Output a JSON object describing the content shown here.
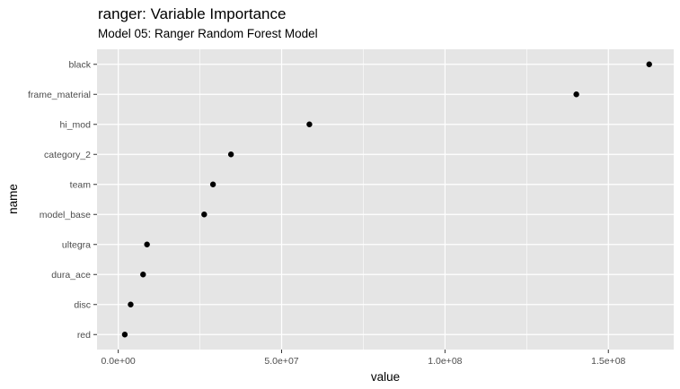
{
  "chart_data": {
    "type": "scatter",
    "title": "ranger: Variable Importance",
    "subtitle": "Model 05: Ranger Random Forest Model",
    "xlabel": "value",
    "ylabel": "name",
    "xlim": [
      -6500000,
      170000000
    ],
    "x_ticks": [
      0,
      50000000,
      100000000,
      150000000
    ],
    "x_tick_labels": [
      "0.0e+00",
      "5.0e+07",
      "1.0e+08",
      "1.5e+08"
    ],
    "categories": [
      "black",
      "frame_material",
      "hi_mod",
      "category_2",
      "team",
      "model_base",
      "ultegra",
      "dura_ace",
      "disc",
      "red"
    ],
    "values": [
      162500000,
      140200000,
      58500000,
      34500000,
      29000000,
      26300000,
      8800000,
      7600000,
      3800000,
      2000000
    ],
    "grid": true,
    "legend": "none",
    "colors": {
      "panel_background": "#e5e5e5",
      "grid_major": "#ffffff",
      "point": "#000000"
    }
  }
}
